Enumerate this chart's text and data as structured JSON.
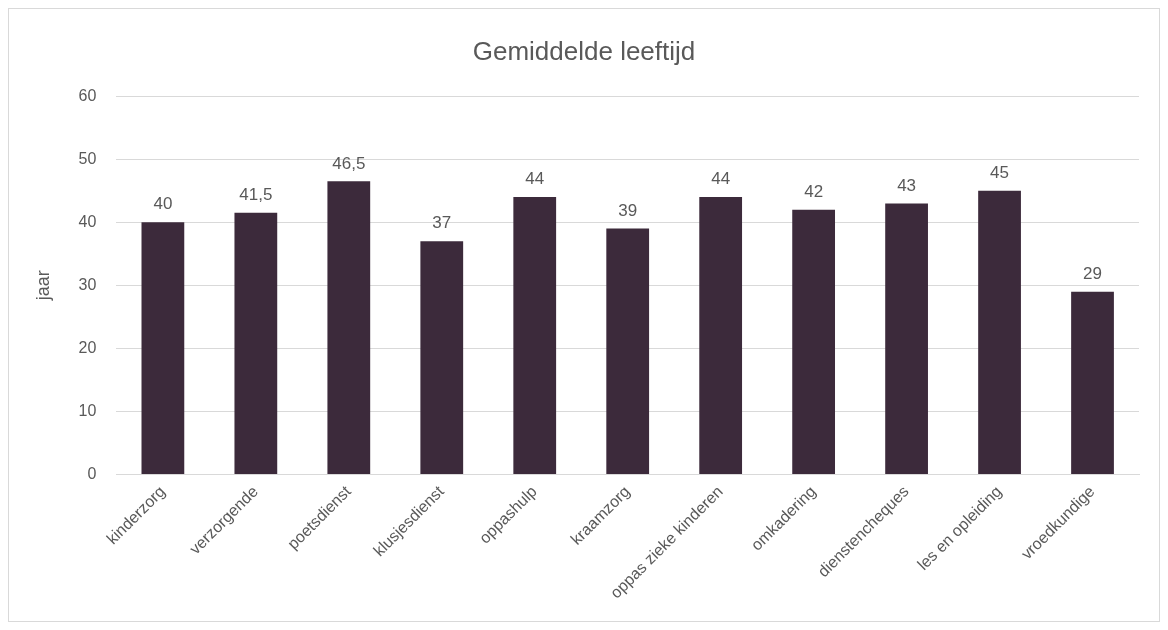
{
  "chart_data": {
    "type": "bar",
    "title": "Gemiddelde leeftijd",
    "ylabel": "jaar",
    "categories": [
      "kinderzorg",
      "verzorgende",
      "poetsdienst",
      "klusjesdienst",
      "oppashulp",
      "kraamzorg",
      "oppas zieke kinderen",
      "omkadering",
      "dienstencheques",
      "les en opleiding",
      "vroedkundige"
    ],
    "values": [
      40,
      41.5,
      46.5,
      37,
      44,
      39,
      44,
      42,
      43,
      45,
      29
    ],
    "value_labels": [
      "40",
      "41,5",
      "46,5",
      "37",
      "44",
      "39",
      "44",
      "42",
      "43",
      "45",
      "29"
    ],
    "color": "#3c2a3b",
    "ylim": [
      0,
      60
    ],
    "yticks": [
      0,
      10,
      20,
      30,
      40,
      50,
      60
    ],
    "grid": "y",
    "legend": false
  }
}
